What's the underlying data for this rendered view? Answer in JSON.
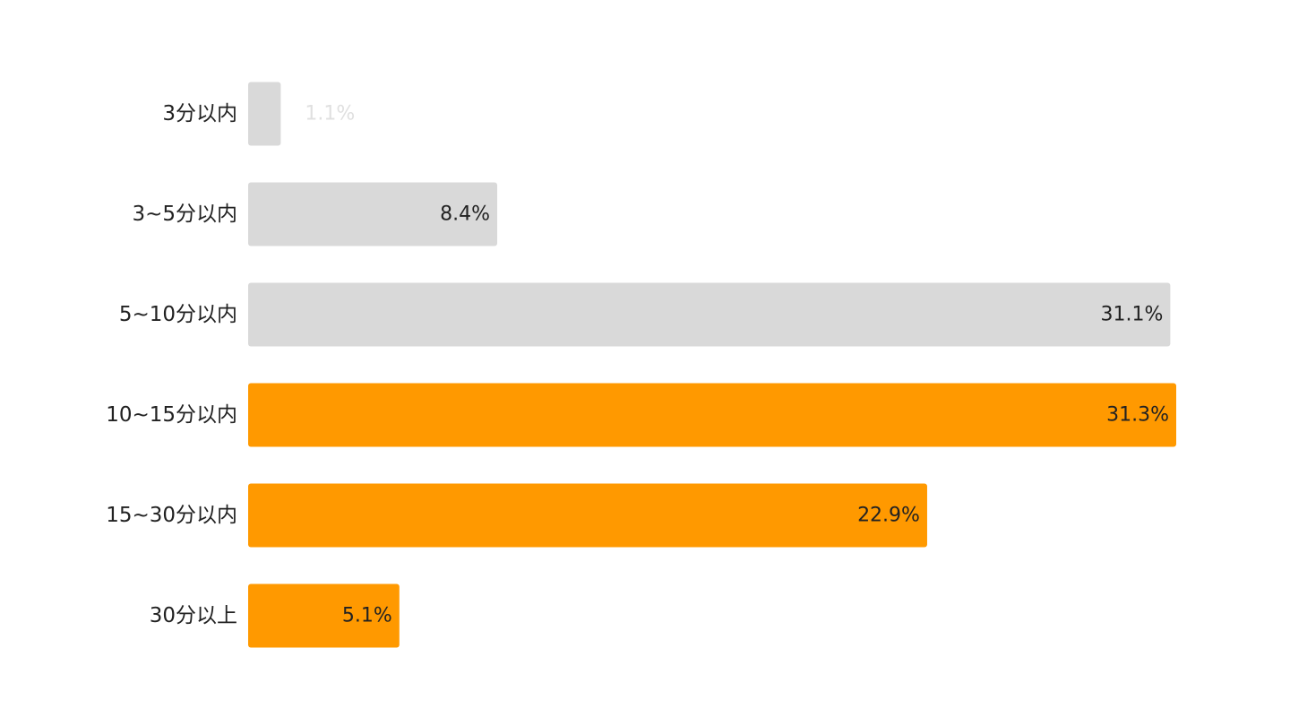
{
  "chart_data": {
    "type": "bar",
    "orientation": "horizontal",
    "categories": [
      "3分以内",
      "3~5分以内",
      "5~10分以内",
      "10~15分以内",
      "15~30分以内",
      "30分以上"
    ],
    "values": [
      1.1,
      8.4,
      31.1,
      31.3,
      22.9,
      5.1
    ],
    "value_labels": [
      "1.1%",
      "8.4%",
      "31.1%",
      "31.3%",
      "22.9%",
      "5.1%"
    ],
    "unit": "%",
    "title": "",
    "xlabel": "",
    "ylabel": "",
    "xlim": [
      0,
      31.3
    ],
    "grid": false,
    "legend": "none",
    "bar_colors": [
      "#d9d9d9",
      "#d9d9d9",
      "#d9d9d9",
      "#ff9900",
      "#ff9900",
      "#ff9900"
    ],
    "label_colors": [
      "#e0e0e0",
      "#222222",
      "#222222",
      "#222222",
      "#222222",
      "#222222"
    ]
  }
}
